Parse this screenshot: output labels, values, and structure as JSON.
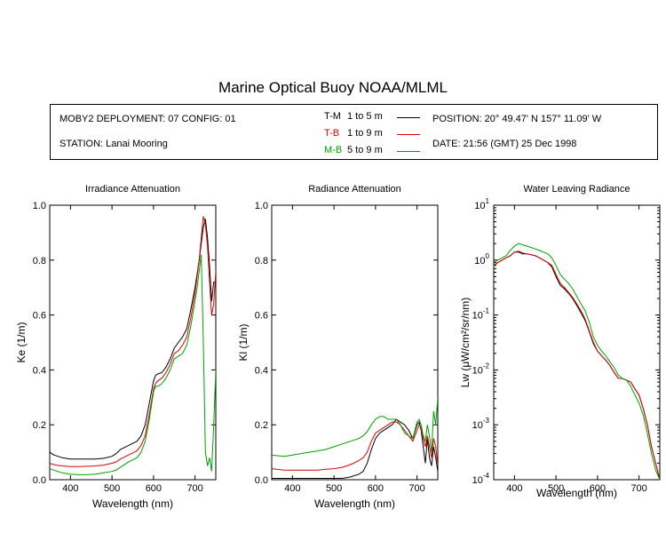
{
  "title": "Marine Optical Buoy NOAA/MLML",
  "info": {
    "deployment": "MOBY2 DEPLOYMENT: 07 CONFIG: 01",
    "station": "STATION: Lanai Mooring",
    "position": "POSITION: 20° 49.47' N   157° 11.09' W",
    "date": "DATE: 21:56 (GMT) 25 Dec 1998"
  },
  "legend": [
    {
      "code": "T-M",
      "range": "1 to 5  m",
      "color": "#000000"
    },
    {
      "code": "T-B",
      "range": "1 to 9  m",
      "color": "#e00000"
    },
    {
      "code": "M-B",
      "range": "5 to 9  m",
      "color": "#00a000"
    }
  ],
  "chart_data": [
    {
      "type": "line",
      "title": "Irradiance Attenuation",
      "xlabel": "Wavelength (nm)",
      "ylabel": "Ke  (1/m)",
      "xlim": [
        350,
        750
      ],
      "ylim": [
        0,
        1.0
      ],
      "xticks": [
        400,
        500,
        600,
        700
      ],
      "yticks": [
        "0.0",
        "0.2",
        "0.4",
        "0.6",
        "0.8",
        "1.0"
      ],
      "x": [
        350,
        360,
        370,
        380,
        400,
        420,
        440,
        460,
        480,
        500,
        510,
        520,
        540,
        560,
        570,
        580,
        590,
        600,
        605,
        610,
        620,
        630,
        640,
        650,
        660,
        670,
        680,
        690,
        700,
        705,
        710,
        715,
        720,
        725,
        730,
        735,
        740,
        745,
        750
      ],
      "series": [
        {
          "name": "T-M",
          "color": "#000000",
          "values": [
            0.1,
            0.09,
            0.085,
            0.08,
            0.075,
            0.075,
            0.075,
            0.075,
            0.078,
            0.085,
            0.095,
            0.11,
            0.125,
            0.14,
            0.16,
            0.2,
            0.28,
            0.36,
            0.38,
            0.385,
            0.39,
            0.41,
            0.44,
            0.48,
            0.5,
            0.52,
            0.55,
            0.62,
            0.7,
            0.75,
            0.8,
            0.86,
            0.92,
            0.95,
            0.88,
            0.78,
            0.65,
            0.72,
            0.72
          ]
        },
        {
          "name": "T-B",
          "color": "#e00000",
          "values": [
            0.06,
            0.055,
            0.052,
            0.05,
            0.048,
            0.048,
            0.049,
            0.05,
            0.053,
            0.06,
            0.065,
            0.075,
            0.09,
            0.105,
            0.125,
            0.16,
            0.24,
            0.33,
            0.35,
            0.36,
            0.37,
            0.39,
            0.42,
            0.46,
            0.47,
            0.49,
            0.52,
            0.59,
            0.68,
            0.74,
            0.8,
            0.88,
            0.96,
            0.93,
            0.85,
            0.72,
            0.6,
            0.64,
            0.76
          ]
        },
        {
          "name": "M-B",
          "color": "#00a000",
          "values": [
            0.04,
            0.035,
            0.03,
            0.025,
            0.02,
            0.018,
            0.018,
            0.02,
            0.025,
            0.03,
            0.035,
            0.045,
            0.065,
            0.08,
            0.1,
            0.14,
            0.22,
            0.32,
            0.34,
            0.34,
            0.35,
            0.37,
            0.4,
            0.44,
            0.45,
            0.46,
            0.49,
            0.56,
            0.65,
            0.7,
            0.76,
            0.82,
            0.5,
            0.1,
            0.05,
            0.08,
            0.03,
            0.2,
            0.4
          ]
        }
      ]
    },
    {
      "type": "line",
      "title": "Radiance Attenuation",
      "xlabel": "Wavelength (nm)",
      "ylabel": "Kl  (1/m)",
      "xlim": [
        350,
        750
      ],
      "ylim": [
        0,
        1.0
      ],
      "xticks": [
        400,
        500,
        600,
        700
      ],
      "yticks": [
        "0.0",
        "0.2",
        "0.4",
        "0.6",
        "0.8",
        "1.0"
      ],
      "x": [
        350,
        380,
        400,
        420,
        440,
        460,
        480,
        500,
        520,
        540,
        560,
        570,
        580,
        590,
        600,
        610,
        620,
        630,
        640,
        650,
        660,
        670,
        680,
        690,
        700,
        705,
        710,
        715,
        720,
        725,
        730,
        735,
        740,
        745,
        750
      ],
      "series": [
        {
          "name": "T-M",
          "color": "#000000",
          "values": [
            0.005,
            0.005,
            0.005,
            0.005,
            0.005,
            0.005,
            0.005,
            0.005,
            0.005,
            0.01,
            0.02,
            0.03,
            0.06,
            0.11,
            0.15,
            0.17,
            0.18,
            0.19,
            0.2,
            0.22,
            0.21,
            0.2,
            0.18,
            0.15,
            0.2,
            0.21,
            0.18,
            0.12,
            0.06,
            0.15,
            0.08,
            0.05,
            0.12,
            0.08,
            0.03
          ]
        },
        {
          "name": "T-B",
          "color": "#e00000",
          "values": [
            0.04,
            0.035,
            0.035,
            0.035,
            0.035,
            0.035,
            0.038,
            0.04,
            0.045,
            0.055,
            0.07,
            0.08,
            0.1,
            0.14,
            0.17,
            0.18,
            0.19,
            0.2,
            0.21,
            0.21,
            0.2,
            0.18,
            0.16,
            0.14,
            0.18,
            0.2,
            0.19,
            0.15,
            0.12,
            0.16,
            0.12,
            0.08,
            0.15,
            0.12,
            0.05
          ]
        },
        {
          "name": "M-B",
          "color": "#00a000",
          "values": [
            0.09,
            0.085,
            0.09,
            0.095,
            0.1,
            0.105,
            0.11,
            0.12,
            0.13,
            0.14,
            0.15,
            0.16,
            0.175,
            0.2,
            0.22,
            0.23,
            0.23,
            0.22,
            0.22,
            0.22,
            0.2,
            0.17,
            0.16,
            0.15,
            0.21,
            0.22,
            0.2,
            0.16,
            0.14,
            0.2,
            0.16,
            0.1,
            0.25,
            0.2,
            0.3
          ]
        }
      ]
    },
    {
      "type": "line",
      "title": "Water Leaving Radiance",
      "xlabel": "Wavelength (nm)",
      "ylabel": "Lw  (μW/cm²/sr/nm)",
      "yscale": "log",
      "xlim": [
        350,
        750
      ],
      "ylim": [
        0.0001,
        10
      ],
      "xticks": [
        400,
        500,
        600,
        700
      ],
      "yticks": [
        "-4",
        "-3",
        "-2",
        "-1",
        "0",
        "1"
      ],
      "x": [
        350,
        360,
        370,
        380,
        390,
        400,
        410,
        420,
        430,
        440,
        450,
        460,
        470,
        480,
        490,
        500,
        510,
        520,
        530,
        540,
        550,
        560,
        570,
        580,
        590,
        600,
        610,
        620,
        630,
        640,
        650,
        660,
        670,
        680,
        690,
        700,
        710,
        720,
        730,
        740,
        750
      ],
      "series": [
        {
          "name": "T-M",
          "color": "#000000",
          "values": [
            0.8,
            0.9,
            1.0,
            1.1,
            1.2,
            1.4,
            1.4,
            1.3,
            1.3,
            1.25,
            1.2,
            1.1,
            1.0,
            0.9,
            0.75,
            0.5,
            0.35,
            0.3,
            0.25,
            0.2,
            0.15,
            0.11,
            0.08,
            0.05,
            0.03,
            0.022,
            0.018,
            0.015,
            0.012,
            0.009,
            0.007,
            0.007,
            0.0065,
            0.006,
            0.0045,
            0.0035,
            0.002,
            0.001,
            0.0004,
            0.0002,
            0.0001
          ]
        },
        {
          "name": "T-B",
          "color": "#e00000",
          "values": [
            0.8,
            0.9,
            1.0,
            1.1,
            1.2,
            1.4,
            1.45,
            1.35,
            1.3,
            1.25,
            1.2,
            1.1,
            1.0,
            0.9,
            0.8,
            0.55,
            0.38,
            0.32,
            0.26,
            0.21,
            0.16,
            0.12,
            0.085,
            0.052,
            0.032,
            0.022,
            0.018,
            0.015,
            0.012,
            0.009,
            0.007,
            0.007,
            0.0065,
            0.006,
            0.0045,
            0.0035,
            0.002,
            0.001,
            0.0004,
            0.0002,
            0.0001
          ]
        },
        {
          "name": "M-B",
          "color": "#00a000",
          "values": [
            0.9,
            1.0,
            1.1,
            1.2,
            1.5,
            1.8,
            2.0,
            1.9,
            1.8,
            1.7,
            1.6,
            1.5,
            1.4,
            1.3,
            1.1,
            0.8,
            0.55,
            0.45,
            0.38,
            0.3,
            0.22,
            0.16,
            0.12,
            0.075,
            0.04,
            0.028,
            0.022,
            0.018,
            0.014,
            0.011,
            0.008,
            0.007,
            0.0065,
            0.005,
            0.0035,
            0.0025,
            0.0015,
            0.0007,
            0.0003,
            0.00015,
            0.0001
          ]
        }
      ]
    }
  ]
}
